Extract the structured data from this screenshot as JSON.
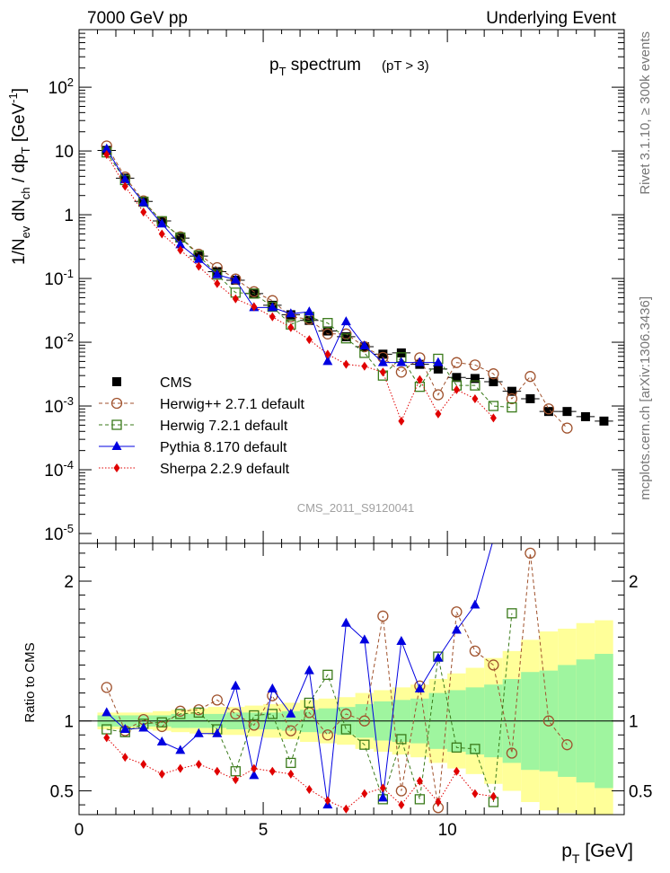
{
  "header": {
    "left": "7000 GeV pp",
    "right": "Underlying Event"
  },
  "side_labels": {
    "rivet": "Rivet 3.1.10, ≥ 300k events",
    "mcplots": "mcplots.cern.ch [arXiv:1306.3436]"
  },
  "watermark": "CMS_2011_S9120041",
  "chart_data": [
    {
      "type": "scatter",
      "title": "p_T spectrum",
      "subtitle": "(pT > 3)",
      "ylabel": "1/N_ev dN_ch / dp_T [GeV^-1]",
      "xlabel": "",
      "yscale": "log",
      "xlim": [
        0,
        14.8
      ],
      "ylim": [
        7e-06,
        800
      ],
      "ytick_labels": [
        "10^-5",
        "10^-4",
        "10^-3",
        "10^-2",
        "10^-1",
        "1",
        "10",
        "10^2"
      ],
      "legend_position": "bottom-left",
      "x": [
        0.75,
        1.25,
        1.75,
        2.25,
        2.75,
        3.25,
        3.75,
        4.25,
        4.75,
        5.25,
        5.75,
        6.25,
        6.75,
        7.25,
        7.75,
        8.25,
        8.75,
        9.25,
        9.75,
        10.25,
        10.75,
        11.25,
        11.75,
        12.25,
        12.75,
        13.25,
        13.75,
        14.25
      ],
      "series": [
        {
          "name": "CMS",
          "color": "#000000",
          "marker": "filled-square",
          "values": [
            10.2,
            3.75,
            1.62,
            0.8,
            0.43,
            0.225,
            0.128,
            0.094,
            0.058,
            0.038,
            0.027,
            0.022,
            0.015,
            0.0122,
            0.0085,
            0.0065,
            0.0068,
            0.0045,
            0.0038,
            0.0028,
            0.0027,
            0.0024,
            0.0017,
            0.0013,
            0.00082,
            0.00082,
            0.00068,
            0.00058
          ]
        },
        {
          "name": "Herwig++ 2.7.1 default",
          "color": "#a0522d",
          "marker": "open-circle",
          "line": "dashed",
          "values": [
            12.0,
            3.9,
            1.65,
            0.78,
            0.45,
            0.24,
            0.148,
            0.098,
            0.062,
            0.045,
            0.025,
            0.023,
            0.0135,
            0.0135,
            0.0085,
            0.0058,
            0.0034,
            0.0057,
            0.0015,
            0.0048,
            0.0044,
            0.0032,
            0.0013,
            0.0029,
            0.0009,
            0.00045
          ]
        },
        {
          "name": "Herwig 7.2.1 default",
          "color": "#3a7a1a",
          "marker": "open-square",
          "line": "dashed",
          "values": [
            9.5,
            3.5,
            1.6,
            0.79,
            0.44,
            0.23,
            0.115,
            0.06,
            0.058,
            0.036,
            0.019,
            0.025,
            0.02,
            0.0115,
            0.0068,
            0.003,
            0.0058,
            0.002,
            0.0055,
            0.0021,
            0.0021,
            0.001,
            0.00095
          ]
        },
        {
          "name": "Pythia 8.170 default",
          "color": "#0000e0",
          "marker": "filled-triangle",
          "line": "solid",
          "values": [
            10.8,
            3.55,
            1.55,
            0.72,
            0.34,
            0.2,
            0.115,
            0.095,
            0.035,
            0.035,
            0.028,
            0.03,
            0.005,
            0.021,
            0.0088,
            0.0048,
            0.0048,
            0.0048,
            0.0048
          ]
        },
        {
          "name": "Sherpa 2.2.9 default",
          "color": "#e00000",
          "marker": "filled-diamond",
          "line": "dotted",
          "values": [
            8.8,
            2.8,
            1.1,
            0.5,
            0.28,
            0.155,
            0.083,
            0.048,
            0.036,
            0.025,
            0.017,
            0.011,
            0.0065,
            0.0045,
            0.0042,
            0.0034,
            0.00058,
            0.0026,
            0.00075,
            0.0018,
            0.0013,
            0.00065
          ]
        }
      ]
    },
    {
      "type": "scatter",
      "title": "",
      "ylabel": "Ratio to CMS",
      "xlabel": "p_T [GeV]",
      "xlim": [
        0,
        14.8
      ],
      "ylim": [
        0.33,
        2.27
      ],
      "xticks": [
        0,
        5,
        10
      ],
      "yticks": [
        0.5,
        1,
        2
      ],
      "bands": {
        "inner_color": "#9ff59f",
        "outer_color": "#ffff99",
        "inner_halfwidth": [
          0.04,
          0.04,
          0.04,
          0.04,
          0.05,
          0.05,
          0.05,
          0.06,
          0.06,
          0.06,
          0.07,
          0.08,
          0.09,
          0.1,
          0.12,
          0.14,
          0.15,
          0.16,
          0.2,
          0.22,
          0.24,
          0.26,
          0.3,
          0.35,
          0.36,
          0.4,
          0.44,
          0.48
        ],
        "outer_halfwidth": [
          0.06,
          0.06,
          0.06,
          0.07,
          0.08,
          0.09,
          0.1,
          0.1,
          0.11,
          0.12,
          0.13,
          0.15,
          0.16,
          0.17,
          0.2,
          0.22,
          0.24,
          0.26,
          0.3,
          0.34,
          0.38,
          0.45,
          0.5,
          0.58,
          0.64,
          0.66,
          0.7,
          0.72
        ]
      },
      "x": [
        0.75,
        1.25,
        1.75,
        2.25,
        2.75,
        3.25,
        3.75,
        4.25,
        4.75,
        5.25,
        5.75,
        6.25,
        6.75,
        7.25,
        7.75,
        8.25,
        8.75,
        9.25,
        9.75,
        10.25,
        10.75,
        11.25,
        11.75,
        12.25,
        12.75,
        13.25,
        13.75,
        14.25
      ],
      "series": [
        {
          "name": "Herwig++ 2.7.1 default",
          "color": "#a0522d",
          "values": [
            1.24,
            0.93,
            1.01,
            0.96,
            1.07,
            1.08,
            1.15,
            1.05,
            0.97,
            1.18,
            0.93,
            1.06,
            0.9,
            1.05,
            1.0,
            1.75,
            0.5,
            1.25,
            0.38,
            1.78,
            1.5,
            1.4,
            0.77,
            2.2,
            1.0,
            0.83
          ]
        },
        {
          "name": "Herwig 7.2.1 default",
          "color": "#3a7a1a",
          "values": [
            0.94,
            0.92,
            0.98,
            0.99,
            1.05,
            1.06,
            0.94,
            0.64,
            1.04,
            1.05,
            0.7,
            1.13,
            1.33,
            0.94,
            0.83,
            0.44,
            0.87,
            0.44,
            1.46,
            0.81,
            0.8,
            0.42,
            1.77
          ]
        },
        {
          "name": "Pythia 8.170 default",
          "color": "#0000e0",
          "values": [
            1.06,
            0.94,
            0.95,
            0.85,
            0.79,
            0.91,
            0.91,
            1.25,
            0.61,
            1.23,
            1.05,
            1.36,
            0.4,
            1.7,
            1.58,
            0.45,
            1.57,
            1.23,
            1.45,
            1.65,
            1.83,
            2.3
          ]
        },
        {
          "name": "Sherpa 2.2.9 default",
          "color": "#e00000",
          "values": [
            0.88,
            0.74,
            0.69,
            0.62,
            0.66,
            0.69,
            0.64,
            0.58,
            0.66,
            0.64,
            0.62,
            0.51,
            0.43,
            0.37,
            0.48,
            0.52,
            0.4,
            0.57,
            0.42,
            0.64,
            0.48,
            0.46
          ]
        }
      ]
    }
  ]
}
